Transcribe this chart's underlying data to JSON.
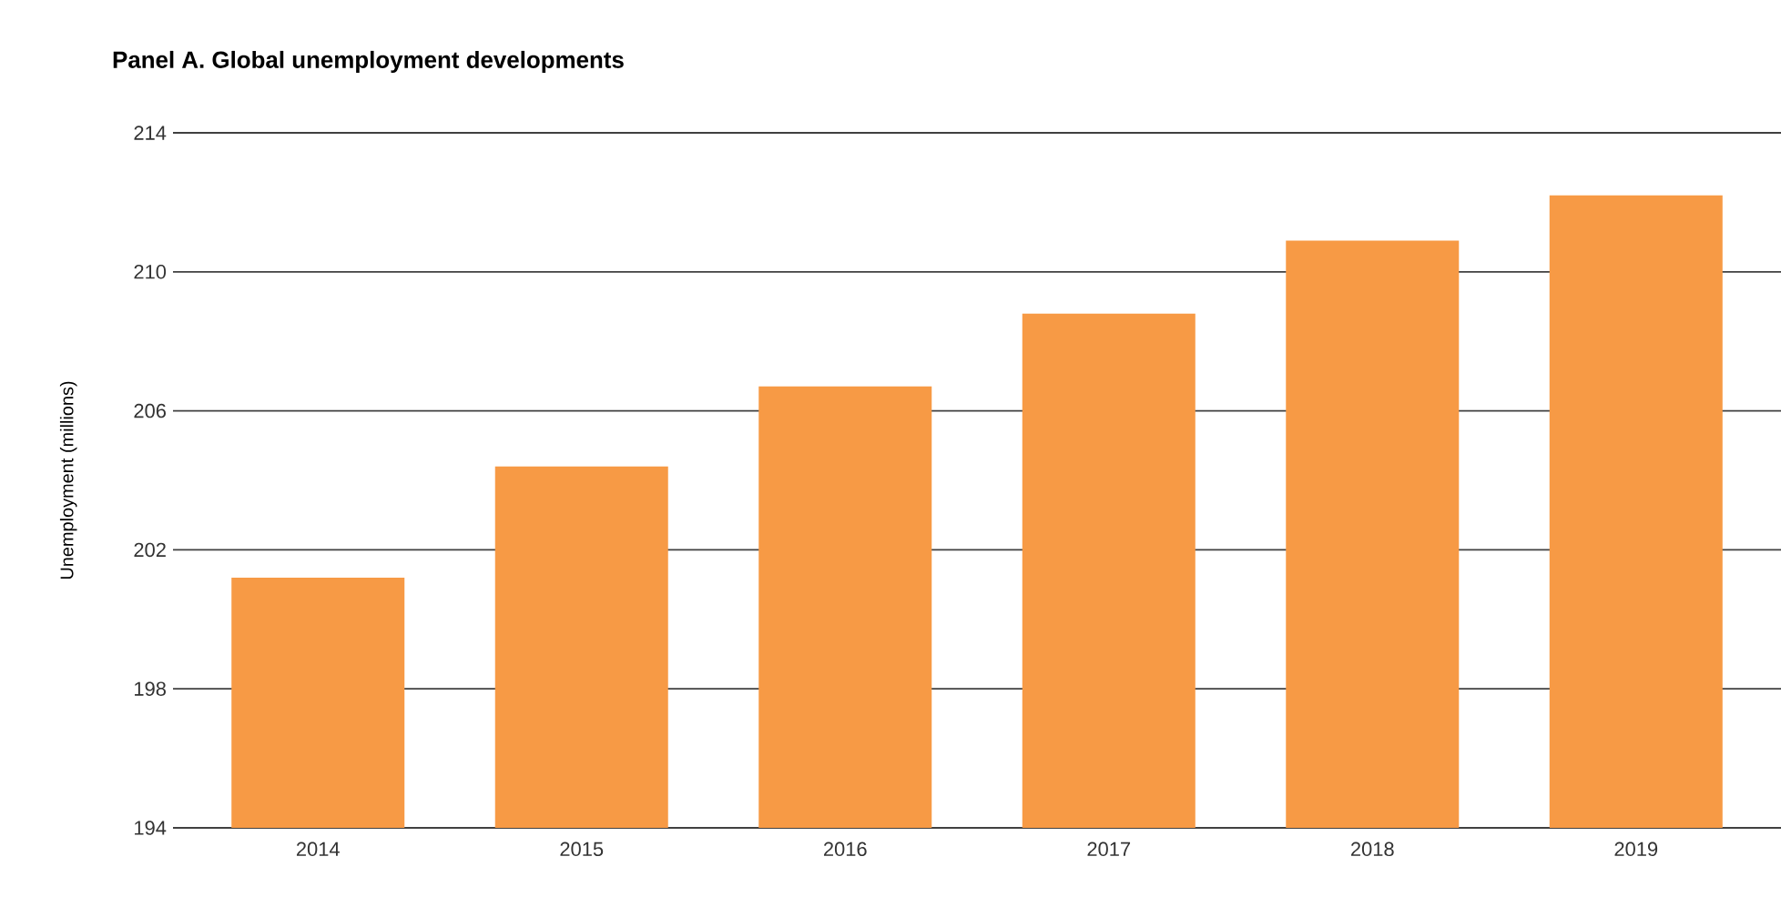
{
  "chart_data": {
    "type": "bar",
    "title": "Panel A. Global unemployment developments",
    "ylabel": "Unemployment (millions)",
    "categories": [
      "2014",
      "2015",
      "2016",
      "2017",
      "2018",
      "2019"
    ],
    "values": [
      201.2,
      204.4,
      206.7,
      208.8,
      210.9,
      212.2
    ],
    "color": "#f79a45",
    "ylim": [
      194,
      214
    ],
    "yticks": [
      194,
      198,
      202,
      206,
      210,
      214
    ],
    "grid": "y"
  }
}
